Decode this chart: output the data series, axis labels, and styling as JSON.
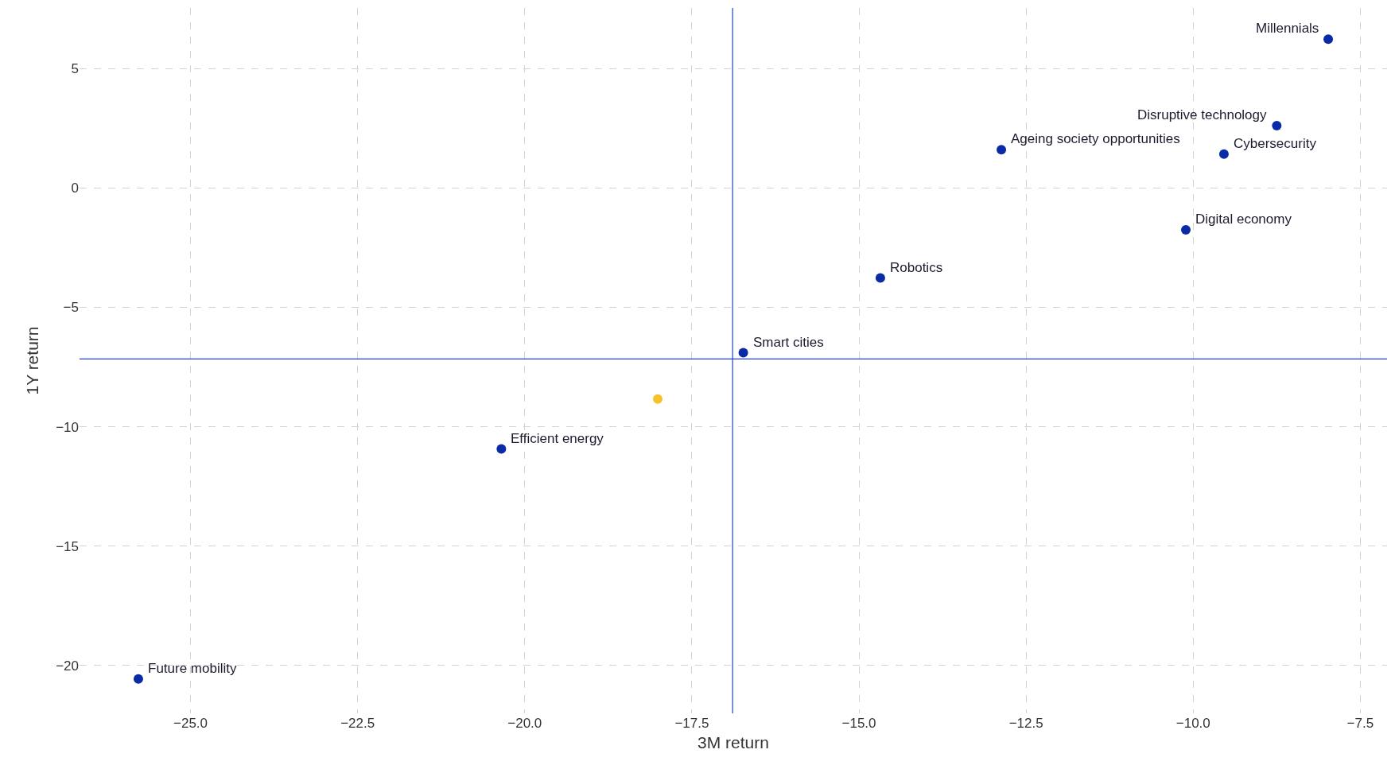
{
  "chart_data": {
    "type": "scatter",
    "xlabel": "3M return",
    "ylabel": "1Y return",
    "x": [
      -7.98,
      -8.75,
      -9.54,
      -10.11,
      -12.87,
      -14.68,
      -16.73,
      -18.01,
      -20.35,
      -25.78
    ],
    "values": [
      6.23,
      2.61,
      1.42,
      -1.75,
      1.6,
      -3.77,
      -6.9,
      -8.84,
      -10.93,
      -20.56
    ],
    "colors": [
      "#0a2aa6",
      "#0a2aa6",
      "#0a2aa6",
      "#0a2aa6",
      "#0a2aa6",
      "#0a2aa6",
      "#0a2aa6",
      "#f7c12d",
      "#0a2aa6",
      "#0a2aa6"
    ],
    "annotations": [
      {
        "text": "Millennials",
        "x": -7.98,
        "y": 6.23
      },
      {
        "text": "Disruptive technology",
        "x": -8.75,
        "y": 2.61
      },
      {
        "text": "Cybersecurity",
        "x": -9.54,
        "y": 1.42
      },
      {
        "text": "Digital economy",
        "x": -10.11,
        "y": -1.75
      },
      {
        "text": "Ageing society opportunities",
        "x": -12.87,
        "y": 1.6
      },
      {
        "text": "Robotics",
        "x": -14.68,
        "y": -3.77
      },
      {
        "text": "Smart cities",
        "x": -16.73,
        "y": -6.9
      },
      {
        "text": "Efficient energy",
        "x": -20.35,
        "y": -10.93
      },
      {
        "text": "Future mobility",
        "x": -25.78,
        "y": -20.56
      }
    ],
    "ref_lines": [
      {
        "axis": "x",
        "value": -16.89,
        "color": "#2040c8"
      },
      {
        "axis": "y",
        "value": -7.16,
        "color": "#2040c8"
      }
    ],
    "xlim": [
      -26.66,
      -7.1
    ],
    "ylim": [
      -22.0,
      7.54
    ],
    "xticks": [
      {
        "value": -25,
        "label": "−25.0"
      },
      -22.5,
      {
        "value": -20,
        "label": "−20.0"
      },
      -17.5,
      {
        "value": -15,
        "label": "−15.0"
      },
      -12.5,
      {
        "value": -10,
        "label": "−10.0"
      },
      -7.5
    ],
    "yticks": [
      -20,
      -15,
      -10,
      -5,
      0,
      5
    ],
    "grid": true,
    "marker": "circle"
  }
}
